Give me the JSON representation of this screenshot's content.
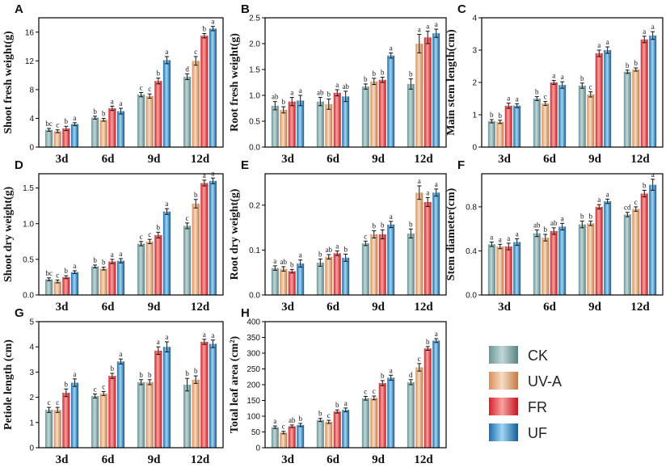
{
  "colors": {
    "CK": [
      "#6f9599",
      "#c0d8d6",
      "#5a8286"
    ],
    "UV-A": [
      "#d8905a",
      "#f6dcc4",
      "#c47a45"
    ],
    "FR": [
      "#d8202a",
      "#f7a2a0",
      "#c21820"
    ],
    "UF": [
      "#1e6bb0",
      "#9fd7f2",
      "#175a96"
    ]
  },
  "legend": [
    "CK",
    "UV-A",
    "FR",
    "UF"
  ],
  "chart_data": [
    {
      "letter": "A",
      "type": "bar",
      "ylabel": "Shoot fresh weight(g)",
      "categories": [
        "3d",
        "6d",
        "9d",
        "12d"
      ],
      "ylim": [
        0,
        18
      ],
      "yticks": [
        0,
        4,
        8,
        12,
        16
      ],
      "series": [
        {
          "name": "CK",
          "values": [
            2.4,
            4.1,
            7.3,
            9.8
          ],
          "errors": [
            0.2,
            0.2,
            0.3,
            0.4
          ],
          "sig": [
            "bc",
            "b",
            "c",
            "d"
          ]
        },
        {
          "name": "UV-A",
          "values": [
            2.2,
            3.8,
            7.1,
            12.0
          ],
          "errors": [
            0.2,
            0.2,
            0.3,
            0.6
          ],
          "sig": [
            "c",
            "b",
            "c",
            "c"
          ]
        },
        {
          "name": "FR",
          "values": [
            2.6,
            5.4,
            9.2,
            15.5
          ],
          "errors": [
            0.3,
            0.3,
            0.4,
            0.3
          ],
          "sig": [
            "b",
            "a",
            "b",
            "b"
          ]
        },
        {
          "name": "UF",
          "values": [
            3.2,
            5.0,
            12.1,
            16.5
          ],
          "errors": [
            0.2,
            0.4,
            0.5,
            0.3
          ],
          "sig": [
            "a",
            "a",
            "a",
            "a"
          ]
        }
      ]
    },
    {
      "letter": "B",
      "type": "bar",
      "ylabel": "Root fresh weight(g)",
      "categories": [
        "3d",
        "6d",
        "9d",
        "12d"
      ],
      "ylim": [
        0,
        2.5
      ],
      "yticks": [
        0.0,
        0.5,
        1.0,
        1.5,
        2.0,
        2.5
      ],
      "series": [
        {
          "name": "CK",
          "values": [
            0.8,
            0.88,
            1.17,
            1.22
          ],
          "errors": [
            0.08,
            0.08,
            0.05,
            0.1
          ],
          "sig": [
            "ab",
            "ab",
            "b",
            "b"
          ]
        },
        {
          "name": "UV-A",
          "values": [
            0.72,
            0.83,
            1.27,
            2.0
          ],
          "errors": [
            0.06,
            0.1,
            0.06,
            0.18
          ],
          "sig": [
            "b",
            "b",
            "b",
            "a"
          ]
        },
        {
          "name": "FR",
          "values": [
            0.88,
            1.05,
            1.3,
            2.12
          ],
          "errors": [
            0.08,
            0.06,
            0.05,
            0.12
          ],
          "sig": [
            "a",
            "a",
            "b",
            "a"
          ]
        },
        {
          "name": "UF",
          "values": [
            0.9,
            0.98,
            1.77,
            2.2
          ],
          "errors": [
            0.1,
            0.1,
            0.05,
            0.08
          ],
          "sig": [
            "a",
            "ab",
            "a",
            "a"
          ]
        }
      ]
    },
    {
      "letter": "C",
      "type": "bar",
      "ylabel": "Main stem length(cm)",
      "categories": [
        "3d",
        "6d",
        "9d",
        "12d"
      ],
      "ylim": [
        0,
        4
      ],
      "yticks": [
        0,
        1,
        2,
        3,
        4
      ],
      "series": [
        {
          "name": "CK",
          "values": [
            0.8,
            1.5,
            1.9,
            2.33
          ],
          "errors": [
            0.05,
            0.06,
            0.08,
            0.05
          ],
          "sig": [
            "b",
            "b",
            "b",
            "b"
          ]
        },
        {
          "name": "UV-A",
          "values": [
            0.78,
            1.35,
            1.63,
            2.4
          ],
          "errors": [
            0.05,
            0.06,
            0.08,
            0.05
          ],
          "sig": [
            "b",
            "c",
            "c",
            "b"
          ]
        },
        {
          "name": "FR",
          "values": [
            1.28,
            2.0,
            2.9,
            3.33
          ],
          "errors": [
            0.08,
            0.06,
            0.1,
            0.1
          ],
          "sig": [
            "a",
            "a",
            "a",
            "a"
          ]
        },
        {
          "name": "UF",
          "values": [
            1.28,
            1.92,
            3.0,
            3.45
          ],
          "errors": [
            0.06,
            0.1,
            0.1,
            0.12
          ],
          "sig": [
            "a",
            "a",
            "a",
            "a"
          ]
        }
      ]
    },
    {
      "letter": "D",
      "type": "bar",
      "ylabel": "Shoot dry weight(g)",
      "categories": [
        "3d",
        "6d",
        "9d",
        "12d"
      ],
      "ylim": [
        0,
        1.7
      ],
      "yticks": [
        0.0,
        0.5,
        1.0,
        1.5
      ],
      "series": [
        {
          "name": "CK",
          "values": [
            0.22,
            0.4,
            0.72,
            0.97
          ],
          "errors": [
            0.02,
            0.02,
            0.03,
            0.04
          ],
          "sig": [
            "bc",
            "b",
            "c",
            "c"
          ]
        },
        {
          "name": "UV-A",
          "values": [
            0.19,
            0.37,
            0.75,
            1.28
          ],
          "errors": [
            0.02,
            0.02,
            0.03,
            0.06
          ],
          "sig": [
            "c",
            "b",
            "c",
            "b"
          ]
        },
        {
          "name": "FR",
          "values": [
            0.25,
            0.47,
            0.84,
            1.57
          ],
          "errors": [
            0.02,
            0.03,
            0.04,
            0.04
          ],
          "sig": [
            "b",
            "a",
            "b",
            "a"
          ]
        },
        {
          "name": "UF",
          "values": [
            0.32,
            0.48,
            1.17,
            1.6
          ],
          "errors": [
            0.02,
            0.03,
            0.04,
            0.04
          ],
          "sig": [
            "a",
            "a",
            "a",
            "a"
          ]
        }
      ]
    },
    {
      "letter": "E",
      "type": "bar",
      "ylabel": "Root dry weight(g)",
      "categories": [
        "3d",
        "6d",
        "9d",
        "12d"
      ],
      "ylim": [
        0,
        0.27
      ],
      "yticks": [
        0.0,
        0.1,
        0.2
      ],
      "series": [
        {
          "name": "CK",
          "values": [
            0.06,
            0.072,
            0.115,
            0.137
          ],
          "errors": [
            0.005,
            0.008,
            0.005,
            0.01
          ],
          "sig": [
            "a",
            "b",
            "c",
            "b"
          ]
        },
        {
          "name": "UV-A",
          "values": [
            0.058,
            0.085,
            0.135,
            0.228
          ],
          "errors": [
            0.005,
            0.005,
            0.008,
            0.015
          ],
          "sig": [
            "ab",
            "ab",
            "b",
            "a"
          ]
        },
        {
          "name": "FR",
          "values": [
            0.053,
            0.093,
            0.135,
            0.207
          ],
          "errors": [
            0.004,
            0.005,
            0.01,
            0.01
          ],
          "sig": [
            "b",
            "a",
            "b",
            "a"
          ]
        },
        {
          "name": "UF",
          "values": [
            0.07,
            0.083,
            0.157,
            0.228
          ],
          "errors": [
            0.008,
            0.008,
            0.007,
            0.008
          ],
          "sig": [
            "a",
            "b",
            "a",
            "a"
          ]
        }
      ]
    },
    {
      "letter": "F",
      "type": "bar",
      "ylabel": "Stem diameter(cm)",
      "categories": [
        "3d",
        "6d",
        "9d",
        "12d"
      ],
      "ylim": [
        0,
        1.1
      ],
      "yticks": [
        0.0,
        0.4,
        0.8
      ],
      "series": [
        {
          "name": "CK",
          "values": [
            0.46,
            0.56,
            0.64,
            0.73
          ],
          "errors": [
            0.02,
            0.03,
            0.03,
            0.02
          ],
          "sig": [
            "a",
            "ab",
            "b",
            "cd"
          ]
        },
        {
          "name": "UV-A",
          "values": [
            0.44,
            0.52,
            0.65,
            0.78
          ],
          "errors": [
            0.02,
            0.03,
            0.02,
            0.02
          ],
          "sig": [
            "a",
            "b",
            "b",
            "c"
          ]
        },
        {
          "name": "FR",
          "values": [
            0.44,
            0.58,
            0.8,
            0.92
          ],
          "errors": [
            0.03,
            0.03,
            0.02,
            0.03
          ],
          "sig": [
            "a",
            "ab",
            "a",
            "b"
          ]
        },
        {
          "name": "UF",
          "values": [
            0.48,
            0.62,
            0.85,
            1.0
          ],
          "errors": [
            0.03,
            0.03,
            0.02,
            0.05
          ],
          "sig": [
            "a",
            "a",
            "a",
            "a"
          ]
        }
      ]
    },
    {
      "letter": "G",
      "type": "bar",
      "ylabel": "Petiole length (cm)",
      "categories": [
        "3d",
        "6d",
        "9d",
        "12d"
      ],
      "ylim": [
        0,
        5
      ],
      "yticks": [
        0,
        1,
        2,
        3,
        4,
        5
      ],
      "series": [
        {
          "name": "CK",
          "values": [
            1.5,
            2.05,
            2.6,
            2.5
          ],
          "errors": [
            0.1,
            0.08,
            0.1,
            0.25
          ],
          "sig": [
            "c",
            "c",
            "b",
            "b"
          ]
        },
        {
          "name": "UV-A",
          "values": [
            1.5,
            2.15,
            2.6,
            2.7
          ],
          "errors": [
            0.1,
            0.08,
            0.1,
            0.15
          ],
          "sig": [
            "c",
            "c",
            "b",
            "b"
          ]
        },
        {
          "name": "FR",
          "values": [
            2.18,
            2.85,
            3.85,
            4.2
          ],
          "errors": [
            0.15,
            0.1,
            0.15,
            0.1
          ],
          "sig": [
            "b",
            "b",
            "a",
            "a"
          ]
        },
        {
          "name": "UF",
          "values": [
            2.58,
            3.42,
            4.0,
            4.12
          ],
          "errors": [
            0.15,
            0.1,
            0.2,
            0.15
          ],
          "sig": [
            "a",
            "a",
            "a",
            "a"
          ]
        }
      ]
    },
    {
      "letter": "H",
      "type": "bar",
      "ylabel": "Total leaf area (cm²)",
      "categories": [
        "3d",
        "6d",
        "9d",
        "12d"
      ],
      "ylim": [
        0,
        400
      ],
      "yticks": [
        0,
        50,
        100,
        150,
        200,
        250,
        300,
        350,
        400
      ],
      "series": [
        {
          "name": "CK",
          "values": [
            65,
            88,
            157,
            208
          ],
          "errors": [
            4,
            5,
            6,
            8
          ],
          "sig": [
            "a",
            "b",
            "c",
            "d"
          ]
        },
        {
          "name": "UV-A",
          "values": [
            48,
            82,
            158,
            255
          ],
          "errors": [
            4,
            5,
            6,
            12
          ],
          "sig": [
            "c",
            "c",
            "c",
            "c"
          ]
        },
        {
          "name": "FR",
          "values": [
            68,
            115,
            205,
            315
          ],
          "errors": [
            4,
            5,
            8,
            6
          ],
          "sig": [
            "ab",
            "b",
            "b",
            "b"
          ]
        },
        {
          "name": "UF",
          "values": [
            72,
            120,
            222,
            340
          ],
          "errors": [
            5,
            6,
            8,
            6
          ],
          "sig": [
            "b",
            "a",
            "a",
            "a"
          ]
        }
      ]
    }
  ]
}
